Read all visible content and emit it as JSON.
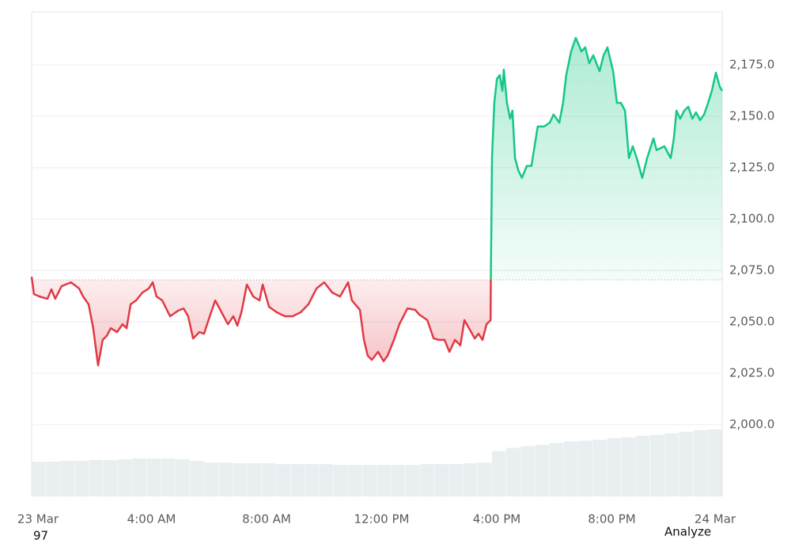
{
  "chart_data": {
    "type": "line",
    "xlim": [
      0,
      24
    ],
    "xticks": [
      {
        "value": 0,
        "label": "23 Mar"
      },
      {
        "value": 4,
        "label": "4:00 AM"
      },
      {
        "value": 8,
        "label": "8:00 AM"
      },
      {
        "value": 12,
        "label": "12:00 PM"
      },
      {
        "value": 16,
        "label": "4:00 PM"
      },
      {
        "value": 20,
        "label": "8:00 PM"
      },
      {
        "value": 24,
        "label": "24 Mar"
      }
    ],
    "ylim": [
      1965,
      2200
    ],
    "yticks": [
      {
        "value": 2000,
        "label": "2,000.0"
      },
      {
        "value": 2025,
        "label": "2,025.0"
      },
      {
        "value": 2050,
        "label": "2,050.0"
      },
      {
        "value": 2075,
        "label": "2,075.0"
      },
      {
        "value": 2100,
        "label": "2,100.0"
      },
      {
        "value": 2125,
        "label": "2,125.0"
      },
      {
        "value": 2150,
        "label": "2,150.0"
      },
      {
        "value": 2175,
        "label": "2,175.0"
      }
    ],
    "grid": true,
    "baseline": 2070.4,
    "series": [
      {
        "color": "#e03a45",
        "x": [
          0,
          0.08,
          0.27,
          0.55,
          0.69,
          0.82,
          1.04,
          1.37,
          1.65,
          1.79,
          1.98,
          2.14,
          2.31,
          2.47,
          2.61,
          2.75,
          2.97,
          3.16,
          3.3,
          3.44,
          3.63,
          3.85,
          4.07,
          4.21,
          4.34,
          4.54,
          4.81,
          5.09,
          5.28,
          5.44,
          5.61,
          5.83,
          5.99,
          6.19,
          6.38,
          6.6,
          6.82,
          7.01,
          7.15,
          7.29,
          7.48,
          7.7,
          7.92,
          8.03,
          8.25,
          8.52,
          8.8,
          9.07,
          9.35,
          9.62,
          9.9,
          10.17,
          10.45,
          10.72,
          11.0,
          11.13,
          11.41,
          11.55,
          11.68,
          11.82,
          12.04,
          12.23,
          12.37,
          12.59,
          12.78,
          13.06,
          13.33,
          13.47,
          13.75,
          13.97,
          14.16,
          14.35,
          14.52,
          14.71,
          14.9,
          15.04,
          15.2,
          15.4,
          15.53,
          15.67,
          15.81,
          15.95,
          15.96
        ],
        "values": [
          2071.9,
          2063.5,
          2062.3,
          2061.2,
          2065.8,
          2061.2,
          2067.3,
          2069.2,
          2066.2,
          2062.3,
          2058.5,
          2047.0,
          2028.8,
          2041.2,
          2043.1,
          2046.9,
          2045.0,
          2048.8,
          2046.9,
          2058.5,
          2060.4,
          2064.2,
          2066.2,
          2069.2,
          2062.3,
          2060.4,
          2052.7,
          2055.4,
          2056.5,
          2052.7,
          2041.9,
          2045.0,
          2044.2,
          2052.7,
          2060.4,
          2054.6,
          2048.8,
          2052.7,
          2048.1,
          2054.6,
          2068.1,
          2062.3,
          2060.4,
          2068.1,
          2057.3,
          2054.6,
          2052.7,
          2052.7,
          2054.6,
          2058.5,
          2066.2,
          2069.2,
          2064.2,
          2062.3,
          2069.2,
          2060.4,
          2055.8,
          2041.2,
          2033.5,
          2031.5,
          2035.4,
          2030.8,
          2033.5,
          2041.2,
          2048.8,
          2056.5,
          2055.8,
          2053.5,
          2050.8,
          2041.9,
          2041.2,
          2041.2,
          2035.4,
          2041.2,
          2038.5,
          2050.8,
          2046.9,
          2041.9,
          2044.2,
          2041.2,
          2048.8,
          2050.8,
          2070.4
        ]
      },
      {
        "color": "#16c784",
        "x": [
          15.96,
          16.0,
          16.08,
          16.17,
          16.27,
          16.36,
          16.41,
          16.52,
          16.63,
          16.71,
          16.8,
          16.91,
          17.04,
          17.21,
          17.37,
          17.59,
          17.81,
          18.01,
          18.14,
          18.34,
          18.47,
          18.58,
          18.75,
          18.91,
          19.11,
          19.24,
          19.38,
          19.52,
          19.74,
          19.88,
          20.01,
          20.21,
          20.34,
          20.48,
          20.62,
          20.76,
          20.89,
          21.03,
          21.22,
          21.39,
          21.61,
          21.72,
          21.99,
          22.21,
          22.32,
          22.41,
          22.54,
          22.68,
          22.82,
          22.96,
          23.09,
          23.23,
          23.37,
          23.51,
          23.64,
          23.78,
          23.92,
          24.0
        ],
        "values": [
          2070.4,
          2129.6,
          2156.5,
          2168.1,
          2170.0,
          2162.3,
          2172.7,
          2156.5,
          2148.8,
          2152.7,
          2129.6,
          2123.8,
          2120.0,
          2125.8,
          2125.8,
          2145.0,
          2145.0,
          2146.9,
          2150.8,
          2146.9,
          2156.5,
          2170.0,
          2181.5,
          2188.1,
          2181.5,
          2183.5,
          2175.8,
          2179.6,
          2171.9,
          2179.6,
          2183.5,
          2171.9,
          2156.5,
          2156.5,
          2152.7,
          2129.6,
          2135.4,
          2129.6,
          2120.0,
          2129.6,
          2139.2,
          2133.5,
          2135.4,
          2129.6,
          2139.2,
          2152.7,
          2148.8,
          2152.7,
          2154.6,
          2148.8,
          2151.9,
          2148.1,
          2150.8,
          2156.5,
          2162.3,
          2171.2,
          2164.2,
          2162.3
        ]
      }
    ],
    "volume": [
      43,
      43,
      44,
      44,
      45,
      45,
      46,
      47,
      47,
      47,
      46,
      44,
      42,
      42,
      41,
      41,
      41,
      40,
      40,
      40,
      40,
      39,
      39,
      39,
      39,
      39,
      39,
      40,
      40,
      40,
      41,
      42,
      56,
      60,
      62,
      64,
      66,
      68,
      69,
      70,
      72,
      73,
      75,
      76,
      78,
      80,
      82,
      83
    ],
    "footer_left": "97",
    "footer_right": "Analyze"
  }
}
